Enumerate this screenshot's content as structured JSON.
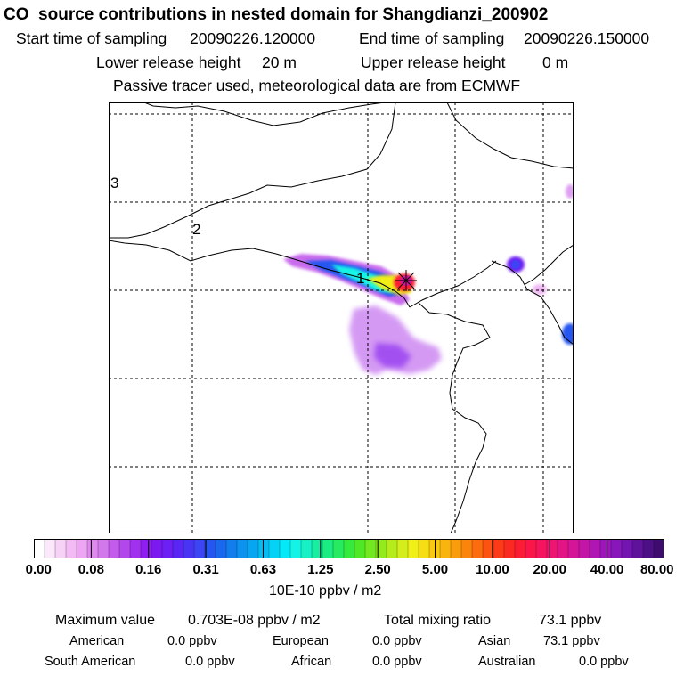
{
  "header": {
    "title": "CO  source contributions in nested domain for Shangdianzi_200902",
    "start_label": "Start time of sampling",
    "start_value": "20090226.120000",
    "end_label": "End time of sampling",
    "end_value": "20090226.150000",
    "lower_label": "Lower release height",
    "lower_value": "20 m",
    "upper_label": "Upper release height",
    "upper_value": "0 m",
    "note": "Passive tracer used, meteorological data are from ECMWF"
  },
  "map": {
    "region_labels": [
      "3",
      "2",
      "1"
    ],
    "receptor_marker": "star-marker"
  },
  "colorbar": {
    "tick_labels": [
      "0.00",
      "0.08",
      "0.16",
      "0.31",
      "0.63",
      "1.25",
      "2.50",
      "5.00",
      "10.00",
      "20.00",
      "40.00",
      "80.00"
    ],
    "colors": [
      "#ffffff",
      "#fbe8fb",
      "#f7d2f7",
      "#f2bbf4",
      "#eda6f1",
      "#df88ee",
      "#d277ec",
      "#c35ceb",
      "#b247eb",
      "#a131ee",
      "#8e1ff0",
      "#7c18f0",
      "#6d20f4",
      "#5a26f4",
      "#4a34f4",
      "#3c44f4",
      "#2656f0",
      "#1a69ec",
      "#127ded",
      "#0c92ef",
      "#07a6f1",
      "#04bcf3",
      "#04d3f5",
      "#05e8f7",
      "#14f4e6",
      "#17f0c5",
      "#19eda2",
      "#1aeb82",
      "#26ea60",
      "#35e93d",
      "#4fe826",
      "#71e820",
      "#93ea1c",
      "#b4ec1c",
      "#d4ee1b",
      "#f0ef18",
      "#f6de14",
      "#f8c910",
      "#f9b40e",
      "#fa9d0c",
      "#fb840c",
      "#fb6c0e",
      "#fc5312",
      "#fc3a18",
      "#fc2822",
      "#fb1d34",
      "#fa1648",
      "#f5145d",
      "#ee1472",
      "#e31486",
      "#d41597",
      "#c315a6",
      "#b115b2",
      "#9d16bb",
      "#8816bb",
      "#7315af",
      "#5f129c",
      "#4d0f85",
      "#3d0c6d"
    ],
    "unit": "10E-10 ppbv / m2"
  },
  "footer": {
    "max_label": "Maximum value",
    "max_value": "0.703E-08 ppbv / m2",
    "total_label": "Total mixing ratio",
    "total_value": "73.1 ppbv",
    "contributions": [
      {
        "name": "American",
        "value": "0.0 ppbv"
      },
      {
        "name": "European",
        "value": "0.0 ppbv"
      },
      {
        "name": "Asian",
        "value": "73.1 ppbv"
      },
      {
        "name": "South American",
        "value": "0.0 ppbv"
      },
      {
        "name": "African",
        "value": "0.0 ppbv"
      },
      {
        "name": "Australian",
        "value": "0.0 ppbv"
      }
    ]
  }
}
